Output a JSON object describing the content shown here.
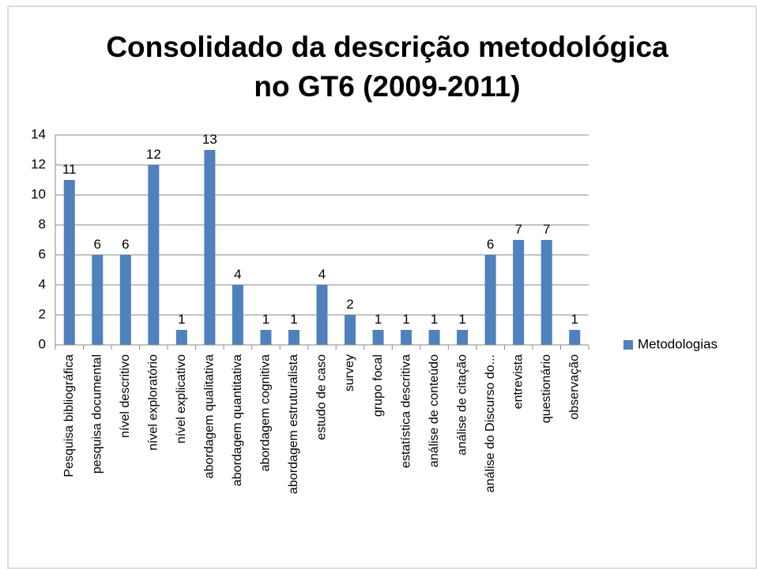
{
  "chart_data": {
    "type": "bar",
    "title": [
      "Consolidado da descrição metodológica",
      "no GT6 (2009-2011)"
    ],
    "categories": [
      "Pesquisa bibliográfica",
      "pesquisa documental",
      "nível descritivo",
      "nível exploratório",
      "nível explicativo",
      "abordagem qualitativa",
      "abordagem quantitativa",
      "abordagem cognitiva",
      "abordagem estruturalista",
      "estudo de caso",
      "survey",
      "grupo focal",
      "estatística descritiva",
      "análise de conteúdo",
      "análise de citação",
      "análise do Discurso do...",
      "entrevista",
      "questionário",
      "observação"
    ],
    "series": [
      {
        "name": "Metodologias",
        "color": "#4f81bd",
        "values": [
          11,
          6,
          6,
          12,
          1,
          13,
          4,
          1,
          1,
          4,
          2,
          1,
          1,
          1,
          1,
          6,
          7,
          7,
          1
        ]
      }
    ],
    "ylim": [
      0,
      14
    ],
    "yticks": [
      0,
      2,
      4,
      6,
      8,
      10,
      12,
      14
    ],
    "grid": true,
    "legend": "right"
  }
}
